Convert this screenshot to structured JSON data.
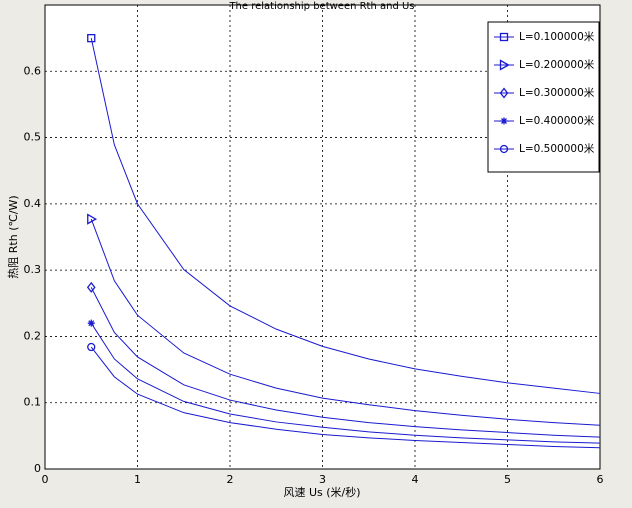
{
  "chart_data": {
    "type": "line",
    "title": "The relationship between Rth and Us",
    "x_label": "风速 Us (米/秒)",
    "y_label": "热阻 Rth (℃/W)",
    "x": [
      0.5,
      0.75,
      1,
      1.5,
      2,
      2.5,
      3,
      3.5,
      4,
      4.5,
      5,
      5.5,
      6
    ],
    "series": [
      {
        "name": "L=0.100000米",
        "color": "#1a1ad0",
        "marker": "square",
        "values": [
          0.65,
          0.489,
          0.4,
          0.301,
          0.246,
          0.211,
          0.185,
          0.166,
          0.151,
          0.14,
          0.13,
          0.122,
          0.114
        ]
      },
      {
        "name": "L=0.200000米",
        "color": "#1a1ad0",
        "marker": "triangle-right",
        "values": [
          0.377,
          0.284,
          0.232,
          0.175,
          0.143,
          0.122,
          0.107,
          0.097,
          0.088,
          0.081,
          0.075,
          0.07,
          0.066
        ]
      },
      {
        "name": "L=0.300000米",
        "color": "#1a1ad0",
        "marker": "diamond",
        "values": [
          0.274,
          0.206,
          0.169,
          0.127,
          0.104,
          0.089,
          0.078,
          0.07,
          0.064,
          0.059,
          0.055,
          0.051,
          0.048
        ]
      },
      {
        "name": "L=0.400000米",
        "color": "#1a1ad0",
        "marker": "asterisk",
        "values": [
          0.22,
          0.166,
          0.136,
          0.102,
          0.083,
          0.071,
          0.063,
          0.056,
          0.051,
          0.047,
          0.044,
          0.041,
          0.039
        ]
      },
      {
        "name": "L=0.500000米",
        "color": "#1a1ad0",
        "marker": "circle",
        "values": [
          0.184,
          0.139,
          0.113,
          0.085,
          0.07,
          0.06,
          0.052,
          0.047,
          0.043,
          0.04,
          0.037,
          0.034,
          0.032
        ]
      }
    ],
    "xlim": [
      0,
      6
    ],
    "xticks": [
      0,
      1,
      2,
      3,
      4,
      5,
      6
    ],
    "ylim": [
      0,
      0.7
    ],
    "yticks": [
      0,
      0.1,
      0.2,
      0.3,
      0.4,
      0.5,
      0.6
    ],
    "grid": true,
    "legend": "top-right"
  }
}
